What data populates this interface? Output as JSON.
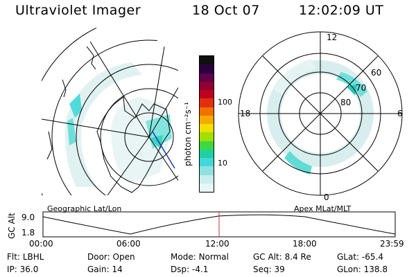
{
  "header": {
    "instrument": "Ultraviolet Imager",
    "date": "18 Oct 07",
    "time": "12:02:09 UT"
  },
  "colorbar": {
    "unit_label": "photon cm⁻²s⁻¹",
    "ticks": [
      "100",
      "10"
    ],
    "colors": [
      "#101010",
      "#2a0040",
      "#60004a",
      "#900030",
      "#c00020",
      "#e03010",
      "#f07000",
      "#f8a800",
      "#f0e000",
      "#a0e000",
      "#40d840",
      "#20d0a0",
      "#40d8d8",
      "#90e0e0",
      "#c8eeee",
      "#e8f6f6"
    ]
  },
  "left_panel": {
    "caption": "Geographic Lat/Lon"
  },
  "right_panel": {
    "caption": "Apex MLat/MLT",
    "mlt_labels": {
      "top": "12",
      "bottom": "0",
      "left": "18",
      "right": "6"
    },
    "lat_labels": [
      "60",
      "70",
      "80"
    ]
  },
  "altitude_plot": {
    "ylabel": "GC Alt",
    "yticks": [
      "9.0",
      "1.8"
    ],
    "xticks": [
      "00:00",
      "06:00",
      "12:00",
      "18:00",
      "23:59"
    ],
    "current_time_marker": "12:02"
  },
  "info": {
    "filter_label": "Flt:",
    "filter": "LBHL",
    "door_label": "Door:",
    "door": "Open",
    "mode_label": "Mode:",
    "mode": "Normal",
    "gcalt_label": "GC Alt:",
    "gcalt": "8.4 Re",
    "glat_label": "GLat:",
    "glat": "-65.4",
    "ip_label": "IP:",
    "ip": "36.0",
    "gain_label": "Gain:",
    "gain": "14",
    "dsp_label": "Dsp:",
    "dsp": "-4.1",
    "seq_label": "Seq:",
    "seq": "39",
    "glon_label": "GLon:",
    "glon": "138.8"
  }
}
